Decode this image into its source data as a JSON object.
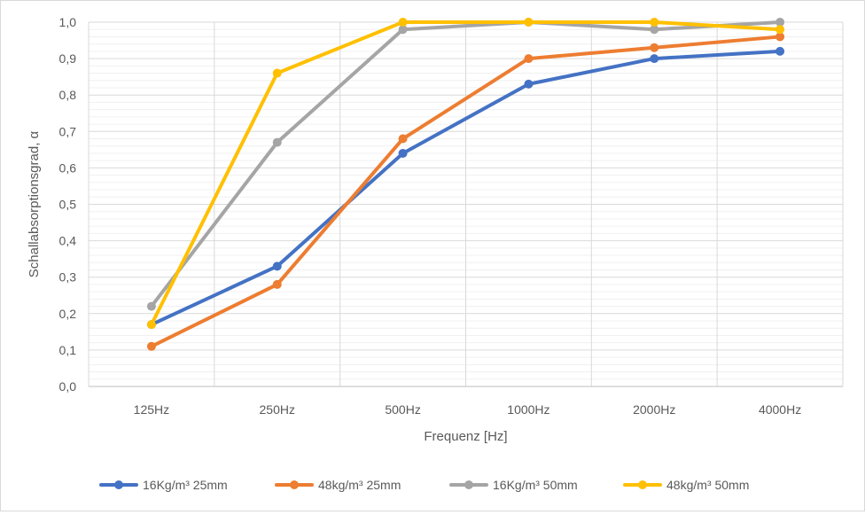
{
  "chart_data": {
    "type": "line",
    "title": "",
    "xlabel": "Frequenz [Hz]",
    "ylabel": "Schallabsorptionsgrad, α",
    "categories": [
      "125Hz",
      "250Hz",
      "500Hz",
      "1000Hz",
      "2000Hz",
      "4000Hz"
    ],
    "ylim": [
      0,
      1.0
    ],
    "yticks": [
      "0,0",
      "0,1",
      "0,2",
      "0,3",
      "0,4",
      "0,5",
      "0,6",
      "0,7",
      "0,8",
      "0,9",
      "1,0"
    ],
    "grid": true,
    "legend_position": "bottom",
    "series": [
      {
        "name": "16Kg/m³ 25mm",
        "color": "#4472C4",
        "values": [
          0.17,
          0.33,
          0.64,
          0.83,
          0.9,
          0.92
        ]
      },
      {
        "name": "48kg/m³ 25mm",
        "color": "#ED7D31",
        "values": [
          0.11,
          0.28,
          0.68,
          0.9,
          0.93,
          0.96
        ]
      },
      {
        "name": "16Kg/m³ 50mm",
        "color": "#A5A5A5",
        "values": [
          0.22,
          0.67,
          0.98,
          1.0,
          0.98,
          1.0
        ]
      },
      {
        "name": "48kg/m³ 50mm",
        "color": "#FFC000",
        "values": [
          0.17,
          0.86,
          1.0,
          1.0,
          1.0,
          0.98
        ]
      }
    ]
  }
}
